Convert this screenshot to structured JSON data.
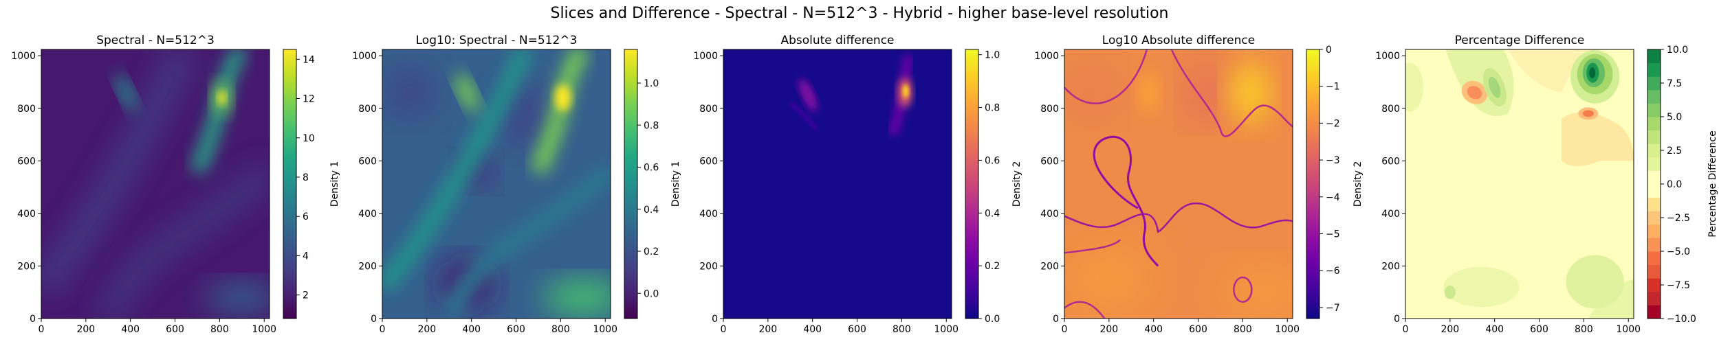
{
  "figure": {
    "suptitle": "Slices and Difference - Spectral - N=512^3 - Hybrid - higher base-level resolution"
  },
  "chart_data": [
    {
      "type": "heatmap",
      "title": "Spectral - N=512^3",
      "xlim": [
        0,
        1024
      ],
      "ylim": [
        0,
        1024
      ],
      "xticks": [
        0,
        200,
        400,
        600,
        800,
        1000
      ],
      "yticks": [
        0,
        200,
        400,
        600,
        800,
        1000
      ],
      "colormap": "viridis",
      "colorbar": {
        "label": "Density 1",
        "range": [
          0.8,
          14.5
        ],
        "ticks": [
          2,
          4,
          6,
          8,
          10,
          12,
          14
        ]
      },
      "features": [
        {
          "x": 810,
          "y": 840,
          "value": 14.5
        },
        {
          "x": 380,
          "y": 860,
          "value": 7.0
        },
        {
          "x": 900,
          "y": 80,
          "value": 4.5
        }
      ]
    },
    {
      "type": "heatmap",
      "title": "Log10: Spectral - N=512^3",
      "xlim": [
        0,
        1024
      ],
      "ylim": [
        0,
        1024
      ],
      "xticks": [
        0,
        200,
        400,
        600,
        800,
        1000
      ],
      "yticks": [
        0,
        200,
        400,
        600,
        800,
        1000
      ],
      "colormap": "viridis",
      "colorbar": {
        "label": "Density 1",
        "range": [
          -0.12,
          1.16
        ],
        "ticks": [
          0.0,
          0.2,
          0.4,
          0.6,
          0.8,
          1.0
        ]
      }
    },
    {
      "type": "heatmap",
      "title": "Absolute difference",
      "xlim": [
        0,
        1024
      ],
      "ylim": [
        0,
        1024
      ],
      "xticks": [
        0,
        200,
        400,
        600,
        800,
        1000
      ],
      "yticks": [
        0,
        200,
        400,
        600,
        800,
        1000
      ],
      "colormap": "plasma",
      "colorbar": {
        "label": "Density 2",
        "range": [
          0.0,
          1.02
        ],
        "ticks": [
          0.0,
          0.2,
          0.4,
          0.6,
          0.8,
          1.0
        ]
      }
    },
    {
      "type": "heatmap",
      "title": "Log10 Absolute difference",
      "xlim": [
        0,
        1024
      ],
      "ylim": [
        0,
        1024
      ],
      "xticks": [
        0,
        200,
        400,
        600,
        800,
        1000
      ],
      "yticks": [
        0,
        200,
        400,
        600,
        800,
        1000
      ],
      "colormap": "plasma",
      "colorbar": {
        "label": "Density 2",
        "range": [
          -7.3,
          0.0
        ],
        "ticks": [
          0,
          -1,
          -2,
          -3,
          -4,
          -5,
          -6,
          -7
        ]
      }
    },
    {
      "type": "heatmap",
      "title": "Percentage Difference",
      "xlim": [
        0,
        1024
      ],
      "ylim": [
        0,
        1024
      ],
      "xticks": [
        0,
        200,
        400,
        600,
        800,
        1000
      ],
      "yticks": [
        0,
        200,
        400,
        600,
        800,
        1000
      ],
      "colormap": "RdYlGn",
      "colorbar": {
        "label": "Percentage Difference",
        "range": [
          -10,
          10
        ],
        "ticks": [
          10.0,
          7.5,
          5.0,
          2.5,
          0.0,
          -2.5,
          -5.0,
          -7.5,
          -10.0
        ]
      }
    }
  ]
}
